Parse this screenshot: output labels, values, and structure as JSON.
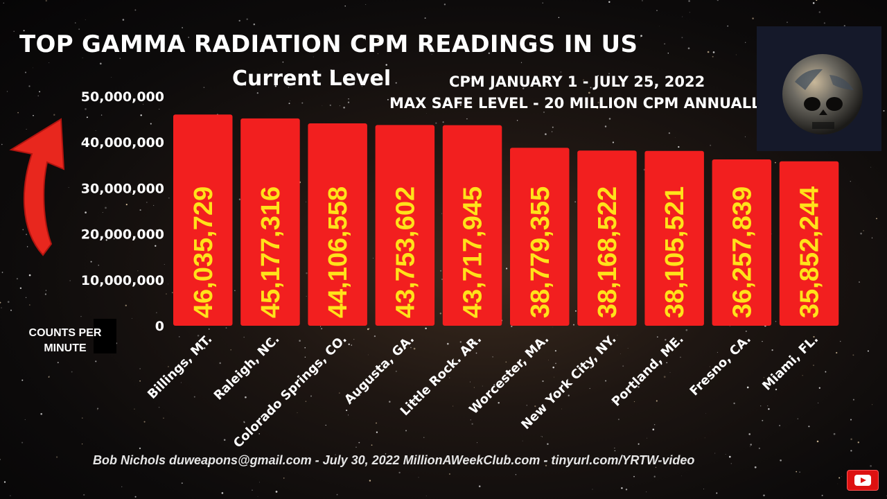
{
  "header": {
    "title": "TOP GAMMA RADIATION CPM READINGS IN US",
    "subtitle": "Current Level",
    "period": "CPM JANUARY 1 - JULY 25, 2022",
    "max_safe": "MAX SAFE LEVEL - 20 MILLION CPM ANNUALL"
  },
  "y_axis_label": [
    "COUNTS PER",
    "MINUTE"
  ],
  "footer": "Bob Nichols duweapons@gmail.com - July 30, 2022   MillionAWeekClub.com  -  tinyurl.com/YRTW-video",
  "icons": {
    "arrow": "red-up-arrow-icon",
    "globe": "skull-globe-icon",
    "youtube": "youtube-subscribe-icon"
  },
  "colors": {
    "bar": "#f21f1f",
    "value_label": "#ffe21a",
    "text": "#ffffff"
  },
  "chart_data": {
    "type": "bar",
    "title": "TOP GAMMA RADIATION CPM READINGS IN US",
    "ylabel": "COUNTS PER MINUTE",
    "categories": [
      "Billings, MT.",
      "Raleigh, NC.",
      "Colorado Springs, CO.",
      "Augusta, GA.",
      "Little Rock. AR.",
      "Worcester, MA.",
      "New York City, NY.",
      "Portland, ME.",
      "Fresno, CA.",
      "Miami, FL."
    ],
    "values": [
      46035729,
      45177316,
      44106558,
      43753602,
      43717945,
      38779355,
      38168522,
      38105521,
      36257839,
      35852244
    ],
    "value_labels": [
      "46,035,729",
      "45,177,316",
      "44,106,558",
      "43,753,602",
      "43,717,945",
      "38,779,355",
      "38,168,522",
      "38,105,521",
      "36,257,839",
      "35,852,244"
    ],
    "ylim": [
      0,
      50000000
    ],
    "yticks": [
      0,
      10000000,
      20000000,
      30000000,
      40000000,
      50000000
    ],
    "ytick_labels": [
      "0",
      "10,000,000",
      "20,000,000",
      "30,000,000",
      "40,000,000",
      "50,000,000"
    ],
    "grid": false,
    "legend": "none"
  }
}
